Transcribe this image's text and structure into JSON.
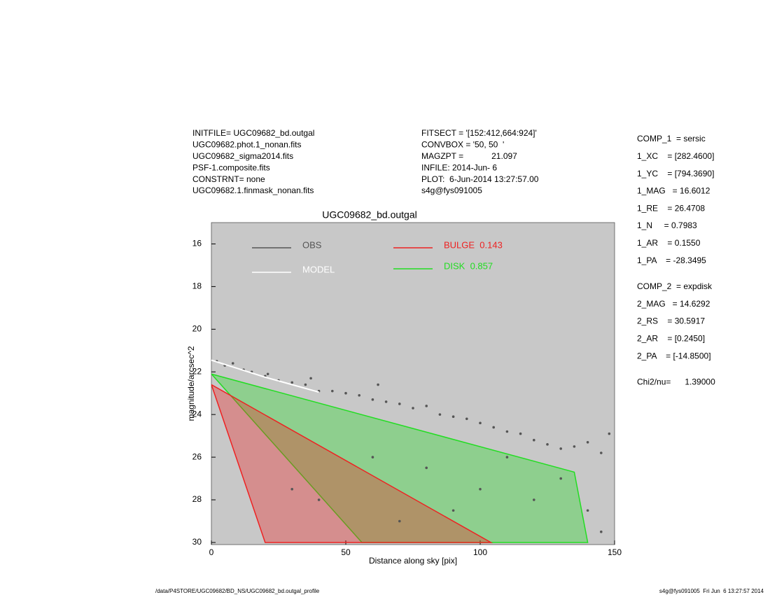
{
  "header_left": [
    "INITFILE= UGC09682_bd.outgal",
    "UGC09682.phot.1_nonan.fits",
    "UGC09682_sigma2014.fits",
    "PSF-1.composite.fits",
    "CONSTRNT= none",
    "UGC09682.1.finmask_nonan.fits"
  ],
  "header_middle": [
    "FITSECT = '[152:412,664:924]'",
    "CONVBOX = '50, 50  '",
    "MAGZPT =            21.097",
    "INFILE: 2014-Jun- 6",
    "PLOT:  6-Jun-2014 13:27:57.00",
    "s4g@fys091005"
  ],
  "params": [
    [
      "COMP_1  = sersic",
      "1_XC    = [282.4600]",
      "1_YC    = [794.3690]",
      "1_MAG   = 16.6012",
      "1_RE    = 26.4708",
      "1_N     = 0.7983",
      "1_AR    = 0.1550",
      "1_PA    = -28.3495"
    ],
    [
      "COMP_2  = expdisk",
      "2_MAG   = 14.6292",
      "2_RS    = 30.5917",
      "2_AR    = [0.2450]",
      "2_PA    = [-14.8500]"
    ],
    [
      "Chi2/nu=      1.39000"
    ]
  ],
  "footer_left": "/data/P4STORE/UGC09682/BD_NS/UGC09682_bd.outgal_profile",
  "footer_right": "s4g@fys091005  Fri Jun  6 13:27:57 2014",
  "chart_data": {
    "type": "scatter",
    "title": "UGC09682_bd.outgal",
    "x_label": "Distance along sky [pix]",
    "y_label": "magnitude/arcsec^2",
    "xlim": [
      0,
      150
    ],
    "ylim": [
      15,
      30.1
    ],
    "y_inverted": true,
    "xticks": [
      0,
      50,
      100,
      150
    ],
    "yticks": [
      16,
      18,
      20,
      22,
      24,
      26,
      28,
      30
    ],
    "background": "#c8c8c8",
    "series": [
      {
        "name": "DISK  0.857",
        "color": "#22dd22",
        "kind": "region",
        "x": [
          0,
          56,
          140,
          135
        ],
        "values": [
          22.1,
          30,
          30,
          26.7
        ]
      },
      {
        "name": "BULGE  0.143",
        "color": "#ee2222",
        "kind": "region",
        "x": [
          0,
          20,
          104
        ],
        "values": [
          22.6,
          30,
          30
        ]
      },
      {
        "name": "OBS",
        "color": "#555555",
        "kind": "points",
        "x": [
          2,
          5,
          8,
          12,
          15,
          20,
          21,
          25,
          30,
          35,
          37,
          40,
          45,
          50,
          55,
          60,
          62,
          65,
          70,
          75,
          80,
          85,
          90,
          95,
          100,
          105,
          110,
          115,
          120,
          125,
          130,
          135,
          140,
          145,
          148,
          60,
          80,
          100,
          120,
          140,
          30,
          40,
          70,
          90,
          110,
          130,
          145
        ],
        "values": [
          21.5,
          21.7,
          21.6,
          21.9,
          22.0,
          22.2,
          22.1,
          22.4,
          22.5,
          22.6,
          22.3,
          22.9,
          22.9,
          23.0,
          23.1,
          23.3,
          22.6,
          23.4,
          23.5,
          23.7,
          23.6,
          24.0,
          24.1,
          24.2,
          24.4,
          24.6,
          24.8,
          24.9,
          25.2,
          25.4,
          25.6,
          25.5,
          25.3,
          25.8,
          24.9,
          26.0,
          26.5,
          27.5,
          28.0,
          28.5,
          27.5,
          28.0,
          29.0,
          28.5,
          26.0,
          27.0,
          29.5
        ]
      },
      {
        "name": "MODEL",
        "color": "#ffffff",
        "kind": "line",
        "x": [
          0,
          10,
          20,
          30,
          40
        ],
        "values": [
          21.45,
          21.85,
          22.25,
          22.6,
          22.95
        ]
      }
    ]
  }
}
